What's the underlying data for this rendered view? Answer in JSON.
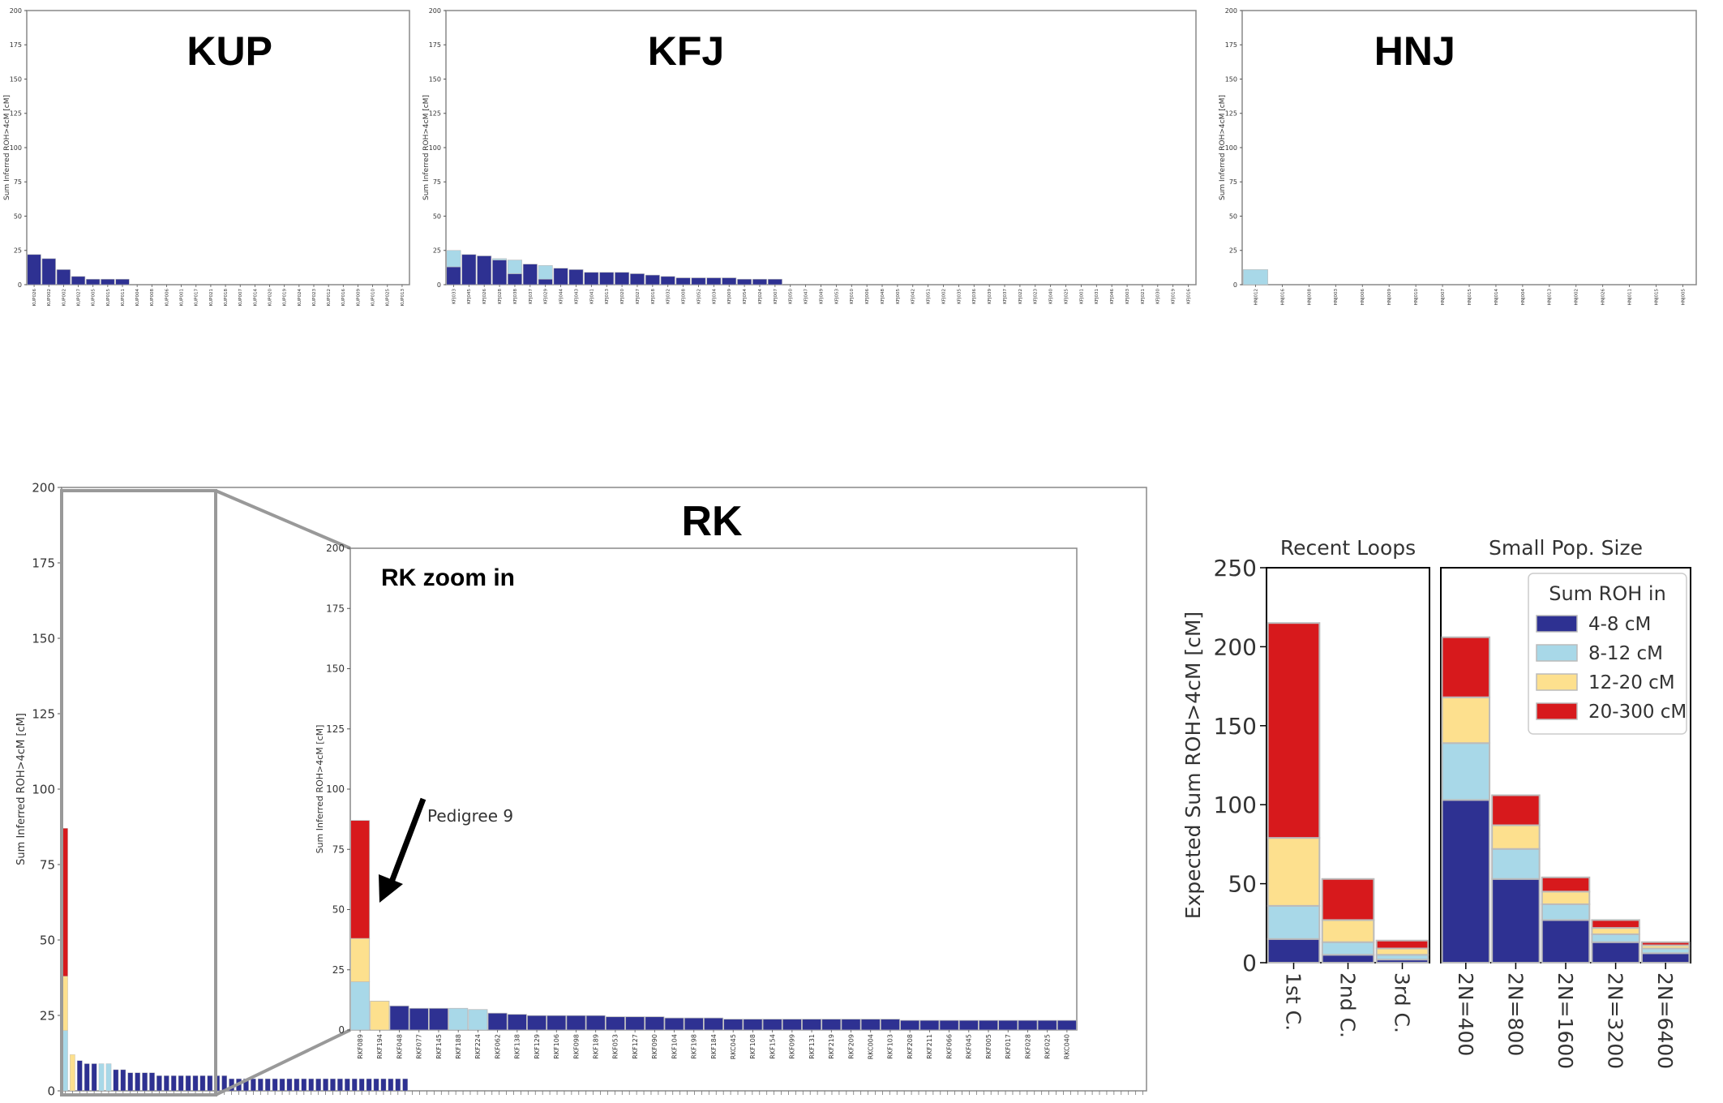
{
  "colors": {
    "roh_4_8": "#2e3192",
    "roh_8_12": "#a8d8e8",
    "roh_12_20": "#fde08e",
    "roh_20_300": "#d7191c",
    "frame": "#888888",
    "zoom_frame": "#999999"
  },
  "chart_data": [
    {
      "id": "KUP",
      "type": "bar",
      "title": "KUP",
      "ylabel": "Sum Inferred ROH>4cM [cM]",
      "ylim": [
        0,
        200
      ],
      "yticks": [
        0,
        25,
        50,
        75,
        100,
        125,
        150,
        175,
        200
      ],
      "categories": [
        "KUP026",
        "KUP002",
        "KUP002",
        "KUP027",
        "KUP005",
        "KUP015",
        "KUP011",
        "KUP004",
        "KUP008",
        "KUP006",
        "KUP001",
        "KUP017",
        "KUP021",
        "KUP018",
        "KUP007",
        "KUP014",
        "KUP020",
        "KUP019",
        "KUP024",
        "KUP023",
        "KUP012",
        "KUP016",
        "KUP009",
        "KUP010",
        "KUP025",
        "KUP013"
      ],
      "series": [
        {
          "name": "4-8 cM",
          "values": [
            22,
            19,
            11,
            6,
            4,
            4,
            4,
            0,
            0,
            0,
            0,
            0,
            0,
            0,
            0,
            0,
            0,
            0,
            0,
            0,
            0,
            0,
            0,
            0,
            0,
            0
          ]
        },
        {
          "name": "8-12 cM",
          "values": [
            0,
            0,
            0,
            0,
            0,
            0,
            0,
            0,
            0,
            0,
            0,
            0,
            0,
            0,
            0,
            0,
            0,
            0,
            0,
            0,
            0,
            0,
            0,
            0,
            0,
            0
          ]
        },
        {
          "name": "12-20 cM",
          "values": [
            0,
            0,
            0,
            0,
            0,
            0,
            0,
            0,
            0,
            0,
            0,
            0,
            0,
            0,
            0,
            0,
            0,
            0,
            0,
            0,
            0,
            0,
            0,
            0,
            0,
            0
          ]
        },
        {
          "name": "20-300 cM",
          "values": [
            0,
            0,
            0,
            0,
            0,
            0,
            0,
            0,
            0,
            0,
            0,
            0,
            0,
            0,
            0,
            0,
            0,
            0,
            0,
            0,
            0,
            0,
            0,
            0,
            0,
            0
          ]
        }
      ]
    },
    {
      "id": "KFJ",
      "type": "bar",
      "title": "KFJ",
      "ylabel": "Sum Inferred ROH>4cM [cM]",
      "ylim": [
        0,
        200
      ],
      "yticks": [
        0,
        25,
        50,
        75,
        100,
        125,
        150,
        175,
        200
      ],
      "categories": [
        "KFJ033",
        "KFJ045",
        "KFJ026",
        "KFJ028",
        "KFJ038",
        "KFJ037",
        "KFJ029",
        "KFJ044",
        "KFJ043",
        "KFJ041",
        "KFJ013",
        "KFJ020",
        "KFJ027",
        "KFJ018",
        "KFJ032",
        "KFJ008",
        "KFJ052",
        "KFJ034",
        "KFJ009",
        "KFJ054",
        "KFJ024",
        "KFJ007",
        "KFJ050",
        "KFJ047",
        "KFJ049",
        "KFJ053",
        "KFJ010",
        "KFJ006",
        "KFJ048",
        "KFJ005",
        "KFJ042",
        "KFJ051",
        "KFJ002",
        "KFJ035",
        "KFJ036",
        "KFJ039",
        "KFJ037",
        "KFJ022",
        "KFJ023",
        "KFJ040",
        "KFJ025",
        "KFJ001",
        "KFJ031",
        "KFJ046",
        "KFJ003",
        "KFJ021",
        "KFJ030",
        "KFJ019",
        "KFJ016"
      ],
      "series": [
        {
          "name": "4-8 cM",
          "values": [
            13,
            22,
            21,
            18,
            8,
            15,
            4,
            12,
            11,
            9,
            9,
            9,
            8,
            7,
            6,
            5,
            5,
            5,
            5,
            4,
            4,
            4,
            0,
            0,
            0,
            0,
            0,
            0,
            0,
            0,
            0,
            0,
            0,
            0,
            0,
            0,
            0,
            0,
            0,
            0,
            0,
            0,
            0,
            0,
            0,
            0,
            0,
            0,
            0
          ]
        },
        {
          "name": "8-12 cM",
          "values": [
            12,
            0,
            0,
            1,
            10,
            0,
            10,
            0,
            0,
            0,
            0,
            0,
            0,
            0,
            0,
            0,
            0,
            0,
            0,
            0,
            0,
            0,
            0,
            0,
            0,
            0,
            0,
            0,
            0,
            0,
            0,
            0,
            0,
            0,
            0,
            0,
            0,
            0,
            0,
            0,
            0,
            0,
            0,
            0,
            0,
            0,
            0,
            0,
            0
          ]
        },
        {
          "name": "12-20 cM",
          "values": [
            0,
            0,
            0,
            0,
            0,
            0,
            0,
            0,
            0,
            0,
            0,
            0,
            0,
            0,
            0,
            0,
            0,
            0,
            0,
            0,
            0,
            0,
            0,
            0,
            0,
            0,
            0,
            0,
            0,
            0,
            0,
            0,
            0,
            0,
            0,
            0,
            0,
            0,
            0,
            0,
            0,
            0,
            0,
            0,
            0,
            0,
            0,
            0,
            0
          ]
        },
        {
          "name": "20-300 cM",
          "values": [
            0,
            0,
            0,
            0,
            0,
            0,
            0,
            0,
            0,
            0,
            0,
            0,
            0,
            0,
            0,
            0,
            0,
            0,
            0,
            0,
            0,
            0,
            0,
            0,
            0,
            0,
            0,
            0,
            0,
            0,
            0,
            0,
            0,
            0,
            0,
            0,
            0,
            0,
            0,
            0,
            0,
            0,
            0,
            0,
            0,
            0,
            0,
            0,
            0
          ]
        }
      ]
    },
    {
      "id": "HNJ",
      "type": "bar",
      "title": "HNJ",
      "ylabel": "Sum Inferred ROH>4cM [cM]",
      "ylim": [
        0,
        200
      ],
      "yticks": [
        0,
        25,
        50,
        75,
        100,
        125,
        150,
        175,
        200
      ],
      "categories": [
        "HNJ012",
        "HNJ016",
        "HNJ008",
        "HNJ003",
        "HNJ006",
        "HNJ009",
        "HNJ010",
        "HNJ007",
        "HNJ015",
        "HNJ014",
        "HNJ004",
        "HNJ013",
        "HNJ002",
        "HNJ026",
        "HNJ011",
        "HNJ015",
        "HNJ005"
      ],
      "series": [
        {
          "name": "4-8 cM",
          "values": [
            0,
            0,
            0,
            0,
            0,
            0,
            0,
            0,
            0,
            0,
            0,
            0,
            0,
            0,
            0,
            0,
            0
          ]
        },
        {
          "name": "8-12 cM",
          "values": [
            11,
            0,
            0,
            0,
            0,
            0,
            0,
            0,
            0,
            0,
            0,
            0,
            0,
            0,
            0,
            0,
            0
          ]
        },
        {
          "name": "12-20 cM",
          "values": [
            0,
            0,
            0,
            0,
            0,
            0,
            0,
            0,
            0,
            0,
            0,
            0,
            0,
            0,
            0,
            0,
            0
          ]
        },
        {
          "name": "20-300 cM",
          "values": [
            0,
            0,
            0,
            0,
            0,
            0,
            0,
            0,
            0,
            0,
            0,
            0,
            0,
            0,
            0,
            0,
            0
          ]
        }
      ]
    },
    {
      "id": "RK",
      "type": "bar",
      "title": "RK",
      "ylabel": "Sum Inferred ROH>4cM [cM]",
      "ylim": [
        0,
        200
      ],
      "yticks": [
        0,
        25,
        50,
        75,
        100,
        125,
        150,
        175,
        200
      ],
      "n_individuals": 150,
      "series": [
        {
          "name": "4-8 cM",
          "values": [
            0,
            0,
            10,
            9,
            9,
            0,
            0,
            7,
            7,
            6,
            6,
            6,
            6,
            5,
            5,
            5,
            5,
            5,
            5,
            5,
            5,
            5,
            5,
            4,
            4,
            4,
            4,
            4,
            4,
            4,
            4,
            4,
            4,
            4,
            4,
            4,
            4,
            4,
            4,
            4,
            4,
            4,
            4,
            4,
            4,
            4,
            4,
            4
          ]
        },
        {
          "name": "8-12 cM",
          "values": [
            20,
            0,
            0,
            0,
            0,
            9,
            9,
            0,
            0,
            0,
            0,
            0,
            0,
            0,
            0,
            0,
            0,
            0,
            0,
            0,
            0,
            0,
            0,
            0,
            0,
            0,
            0,
            0,
            0,
            0,
            0,
            0,
            0,
            0,
            0,
            0,
            0,
            0,
            0,
            0,
            0,
            0,
            0,
            0,
            0,
            0,
            0,
            0
          ]
        },
        {
          "name": "12-20 cM",
          "values": [
            18,
            12,
            0,
            0,
            0,
            0,
            0,
            0,
            0,
            0,
            0,
            0,
            0,
            0,
            0,
            0,
            0,
            0,
            0,
            0,
            0,
            0,
            0,
            0,
            0,
            0,
            0,
            0,
            0,
            0,
            0,
            0,
            0,
            0,
            0,
            0,
            0,
            0,
            0,
            0,
            0,
            0,
            0,
            0,
            0,
            0,
            0,
            0
          ]
        },
        {
          "name": "20-300 cM",
          "values": [
            49,
            0,
            0,
            0,
            0,
            0,
            0,
            0,
            0,
            0,
            0,
            0,
            0,
            0,
            0,
            0,
            0,
            0,
            0,
            0,
            0,
            0,
            0,
            0,
            0,
            0,
            0,
            0,
            0,
            0,
            0,
            0,
            0,
            0,
            0,
            0,
            0,
            0,
            0,
            0,
            0,
            0,
            0,
            0,
            0,
            0,
            0,
            0
          ]
        }
      ]
    },
    {
      "id": "RK-zoom",
      "type": "bar",
      "title": "RK zoom in",
      "ylabel": "Sum Inferred ROH>4cM [cM]",
      "ylim": [
        0,
        200
      ],
      "yticks": [
        0,
        25,
        50,
        75,
        100,
        125,
        150,
        175,
        200
      ],
      "annotation": "Pedigree 9",
      "categories": [
        "RKF089",
        "RKF194",
        "RKF048",
        "RKF077",
        "RKF145",
        "RKF188",
        "RKF224",
        "RKF062",
        "RKF138",
        "RKF129",
        "RKF106",
        "RKF098",
        "RKF189",
        "RKF053",
        "RKF127",
        "RKF090",
        "RKF104",
        "RKF198",
        "RKF184",
        "RKC045",
        "RKF108",
        "RKF154",
        "RKF099",
        "RKF131",
        "RKF219",
        "RKF209",
        "RKC004",
        "RKF103",
        "RKF208",
        "RKF211",
        "RKF066",
        "RKF045",
        "RKF005",
        "RKF017",
        "RKF028",
        "RKF025",
        "RKC040"
      ],
      "series": [
        {
          "name": "4-8 cM",
          "values": [
            0,
            0,
            10,
            9,
            9,
            0,
            0,
            7,
            6.5,
            6,
            6,
            6,
            6,
            5.5,
            5.5,
            5.5,
            5,
            5,
            5,
            4.5,
            4.5,
            4.5,
            4.5,
            4.5,
            4.5,
            4.5,
            4.5,
            4.5,
            4,
            4,
            4,
            4,
            4,
            4,
            4,
            4,
            4
          ]
        },
        {
          "name": "8-12 cM",
          "values": [
            20,
            0,
            0,
            0,
            0,
            9,
            8.5,
            0,
            0,
            0,
            0,
            0,
            0,
            0,
            0,
            0,
            0,
            0,
            0,
            0,
            0,
            0,
            0,
            0,
            0,
            0,
            0,
            0,
            0,
            0,
            0,
            0,
            0,
            0,
            0,
            0,
            0
          ]
        },
        {
          "name": "12-20 cM",
          "values": [
            18,
            12,
            0,
            0,
            0,
            0,
            0,
            0,
            0,
            0,
            0,
            0,
            0,
            0,
            0,
            0,
            0,
            0,
            0,
            0,
            0,
            0,
            0,
            0,
            0,
            0,
            0,
            0,
            0,
            0,
            0,
            0,
            0,
            0,
            0,
            0,
            0
          ]
        },
        {
          "name": "20-300 cM",
          "values": [
            49,
            0,
            0,
            0,
            0,
            0,
            0,
            0,
            0,
            0,
            0,
            0,
            0,
            0,
            0,
            0,
            0,
            0,
            0,
            0,
            0,
            0,
            0,
            0,
            0,
            0,
            0,
            0,
            0,
            0,
            0,
            0,
            0,
            0,
            0,
            0,
            0
          ]
        }
      ]
    },
    {
      "id": "expected",
      "type": "bar",
      "ylabel": "Expected Sum ROH>4cM [cM]",
      "ylim": [
        0,
        250
      ],
      "yticks": [
        0,
        50,
        100,
        150,
        200,
        250
      ],
      "panels": [
        {
          "title": "Recent Loops",
          "categories": [
            "1st C.",
            "2nd C.",
            "3rd C."
          ],
          "series": [
            {
              "name": "4-8 cM",
              "values": [
                15,
                5,
                2
              ]
            },
            {
              "name": "8-12 cM",
              "values": [
                21,
                8,
                3
              ]
            },
            {
              "name": "12-20 cM",
              "values": [
                43,
                14,
                4
              ]
            },
            {
              "name": "20-300 cM",
              "values": [
                136,
                26,
                5
              ]
            }
          ]
        },
        {
          "title": "Small Pop. Size",
          "categories": [
            "2N=400",
            "2N=800",
            "2N=1600",
            "2N=3200",
            "2N=6400"
          ],
          "series": [
            {
              "name": "4-8 cM",
              "values": [
                103,
                53,
                27,
                13,
                6
              ]
            },
            {
              "name": "8-12 cM",
              "values": [
                36,
                19,
                10,
                5,
                3
              ]
            },
            {
              "name": "12-20 cM",
              "values": [
                29,
                15,
                8,
                4,
                2
              ]
            },
            {
              "name": "20-300 cM",
              "values": [
                38,
                19,
                9,
                5,
                2
              ]
            }
          ]
        }
      ],
      "legend": {
        "title": "Sum ROH in",
        "entries": [
          "4-8 cM",
          "8-12 cM",
          "12-20 cM",
          "20-300 cM"
        ],
        "placement": "top-right"
      }
    }
  ]
}
